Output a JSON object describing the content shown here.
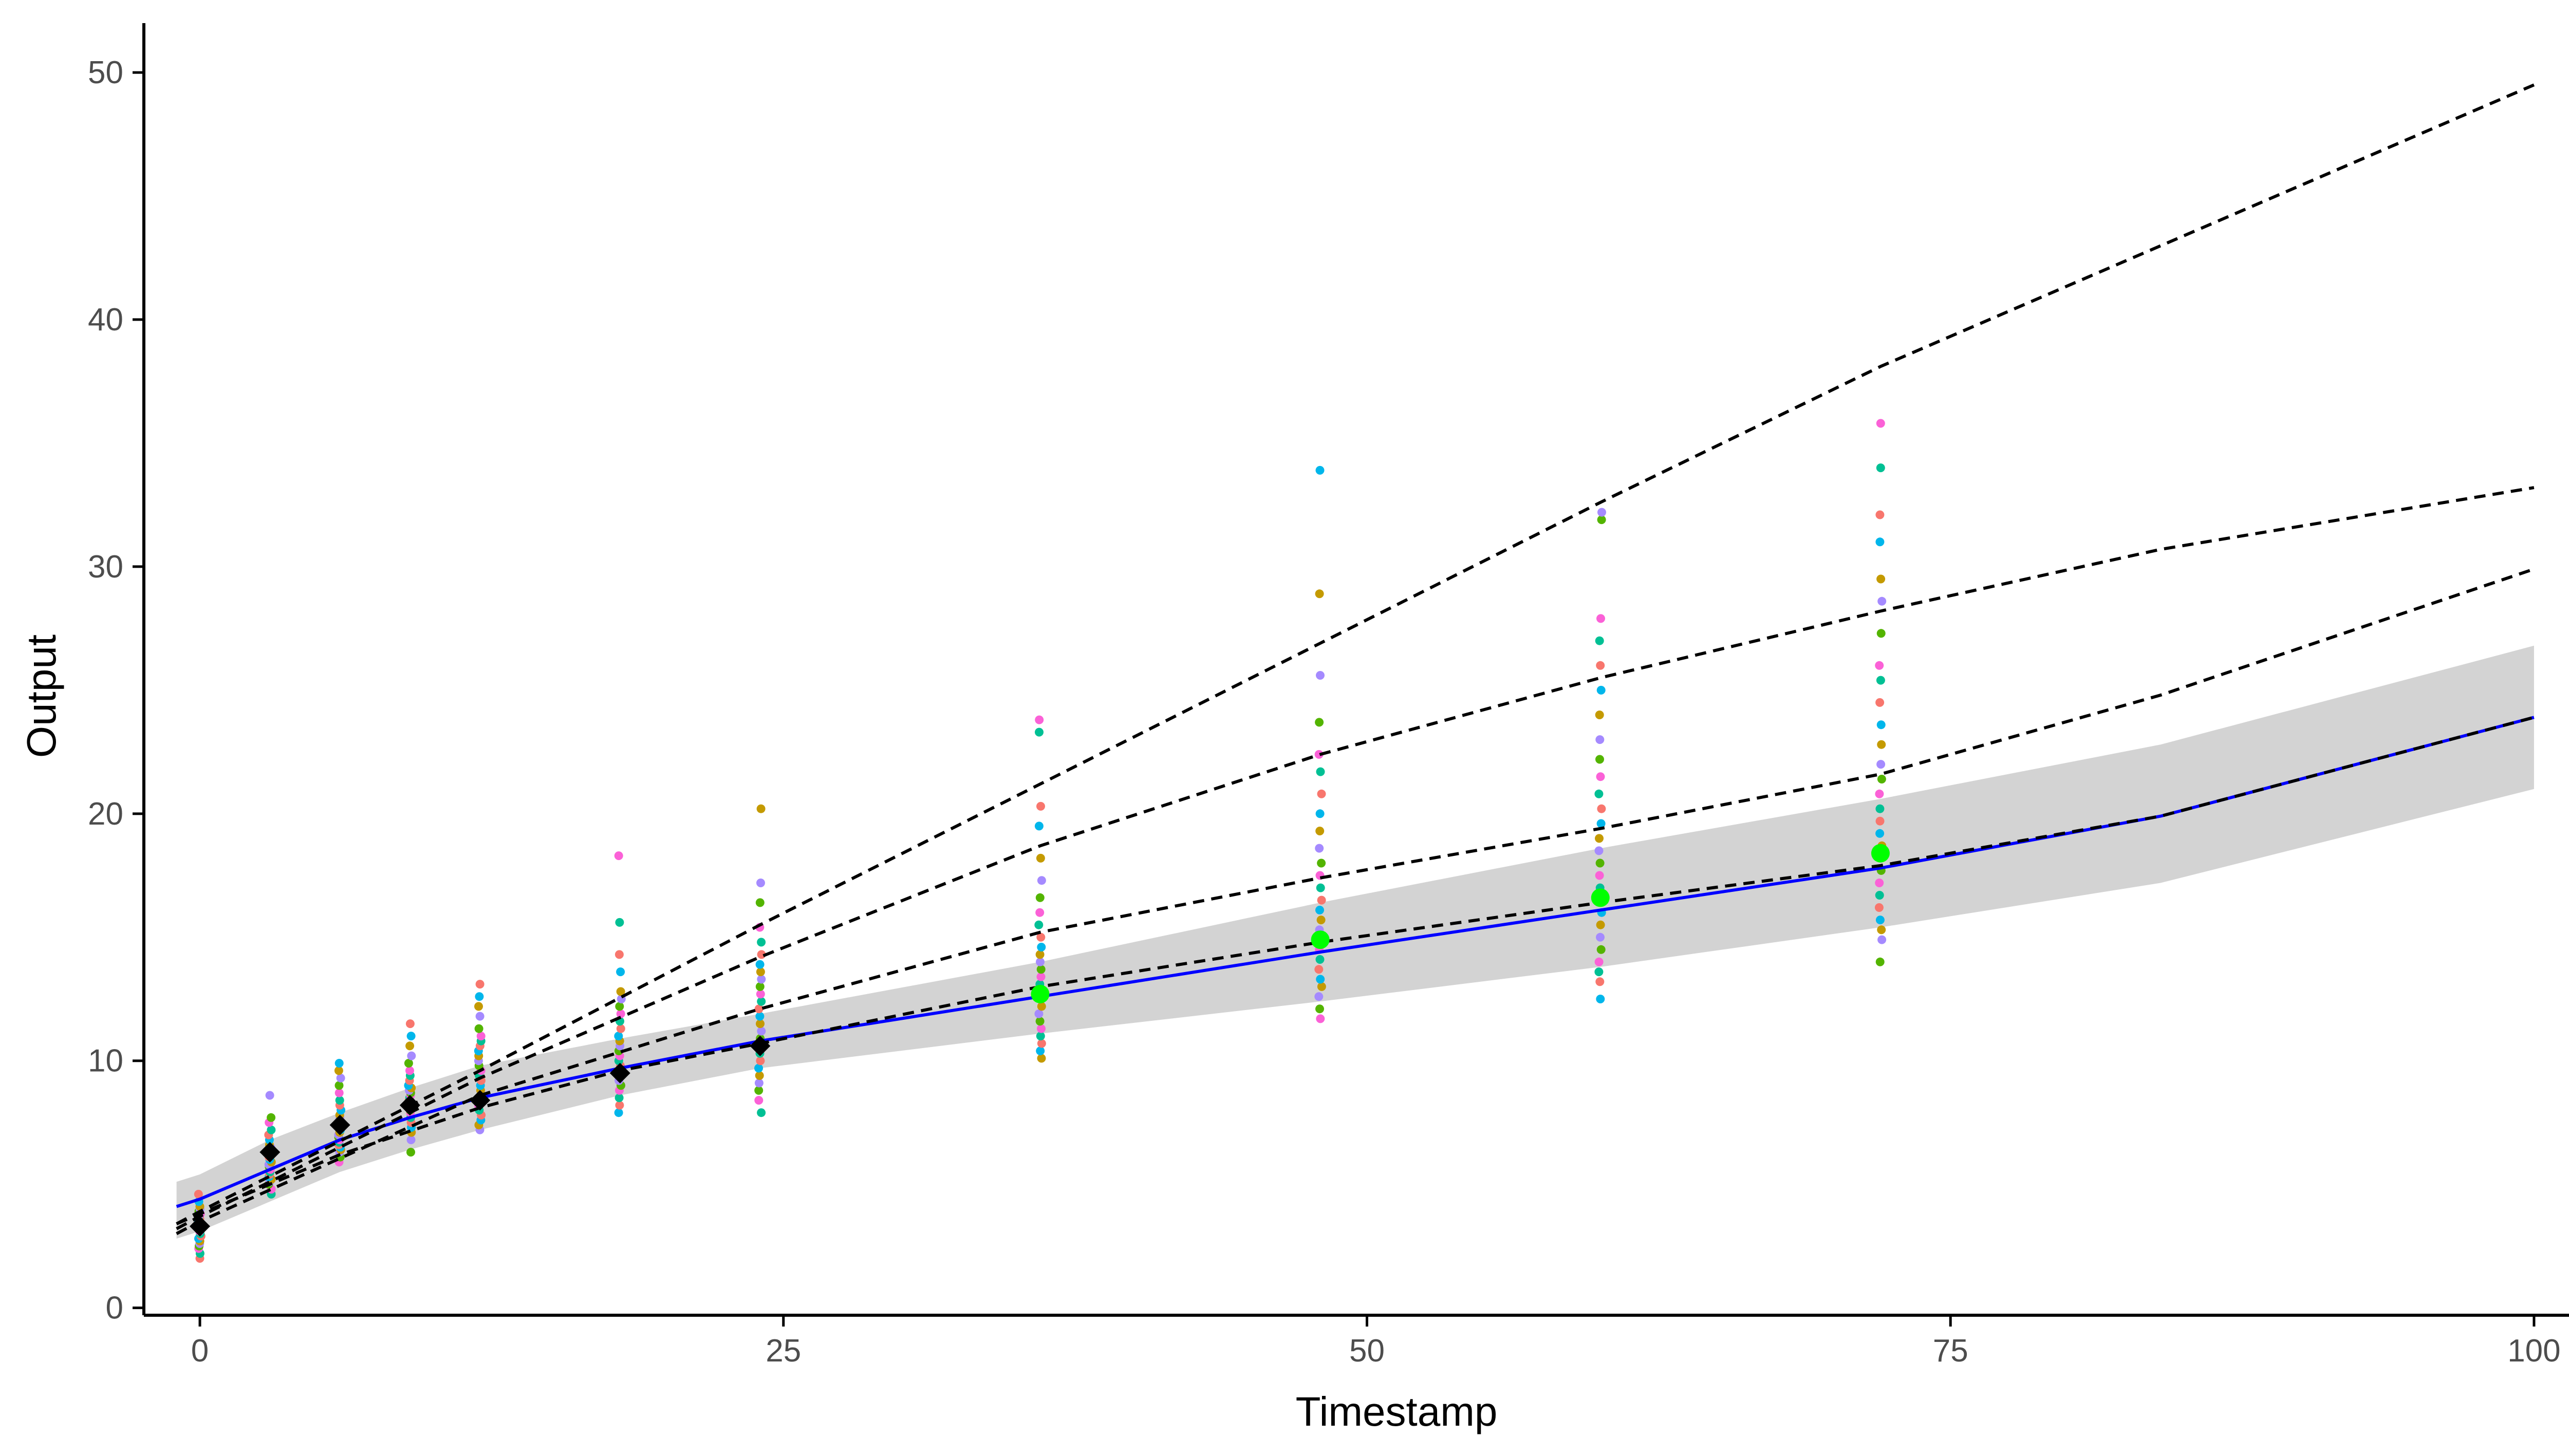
{
  "chart_data": {
    "type": "scatter",
    "title": "",
    "xlabel": "Timestamp",
    "ylabel": "Output",
    "xlim": [
      -2.4,
      104.8
    ],
    "ylim": [
      -0.3,
      52
    ],
    "x_ticks": [
      0,
      25,
      50,
      75,
      100
    ],
    "y_ticks": [
      0,
      10,
      20,
      30,
      40,
      50
    ],
    "grid": false,
    "legend": "none",
    "colors": {
      "fit_line": "#0000ff",
      "ribbon": "#d3d3d3",
      "dashed_lines": "#000000",
      "observed_means": "#000000",
      "predicted_means": "#00ff00",
      "axis": "#000000",
      "tick_labels": "#4d4d4d",
      "points_palette": [
        "#f8766d",
        "#c49a00",
        "#53b400",
        "#00c094",
        "#00b6eb",
        "#a58aff",
        "#fb61d7"
      ]
    },
    "series": [
      {
        "kind": "points",
        "note_colors_cycle": true,
        "groups": [
          {
            "x": 0,
            "values": [
              2.0,
              2.2,
              2.4,
              2.5,
              2.6,
              2.7,
              2.8,
              2.9,
              3.0,
              3.1,
              3.2,
              3.3,
              3.4,
              3.5,
              3.6,
              3.7,
              3.8,
              3.9,
              4.0,
              4.1,
              4.3,
              4.6
            ]
          },
          {
            "x": 3,
            "values": [
              4.6,
              4.8,
              5.0,
              5.1,
              5.2,
              5.3,
              5.4,
              5.5,
              5.6,
              5.7,
              5.8,
              5.9,
              6.0,
              6.1,
              6.2,
              6.3,
              6.4,
              6.5,
              6.6,
              6.8,
              7.0,
              7.2,
              7.5,
              7.7,
              8.6
            ]
          },
          {
            "x": 6,
            "values": [
              5.9,
              6.1,
              6.3,
              6.4,
              6.5,
              6.6,
              6.7,
              6.8,
              6.9,
              7.0,
              7.1,
              7.2,
              7.3,
              7.4,
              7.5,
              7.6,
              7.7,
              7.8,
              8.0,
              8.2,
              8.4,
              8.7,
              9.0,
              9.3,
              9.6,
              9.9
            ]
          },
          {
            "x": 9,
            "values": [
              6.3,
              6.8,
              7.1,
              7.3,
              7.5,
              7.7,
              7.9,
              8.0,
              8.1,
              8.2,
              8.3,
              8.4,
              8.5,
              8.6,
              8.7,
              8.8,
              8.9,
              9.0,
              9.2,
              9.4,
              9.6,
              9.9,
              10.2,
              10.6,
              11.0,
              11.5
            ]
          },
          {
            "x": 12,
            "values": [
              7.2,
              7.4,
              7.6,
              7.8,
              8.0,
              8.2,
              8.4,
              8.6,
              8.8,
              9.0,
              9.2,
              9.4,
              9.6,
              9.8,
              10.0,
              10.2,
              10.4,
              10.6,
              10.8,
              11.0,
              11.3,
              11.8,
              12.2,
              12.6,
              13.1
            ]
          },
          {
            "x": 18,
            "values": [
              7.9,
              8.2,
              8.5,
              8.8,
              9.0,
              9.2,
              9.4,
              9.6,
              9.8,
              10.0,
              10.2,
              10.4,
              10.6,
              10.8,
              11.0,
              11.3,
              11.6,
              11.9,
              12.2,
              12.5,
              12.8,
              13.6,
              14.3,
              15.6,
              18.3
            ]
          },
          {
            "x": 24,
            "values": [
              7.9,
              8.4,
              8.8,
              9.1,
              9.4,
              9.7,
              10.0,
              10.3,
              10.6,
              10.9,
              11.2,
              11.5,
              11.8,
              12.1,
              12.4,
              12.7,
              13.0,
              13.3,
              13.6,
              13.9,
              14.3,
              14.8,
              15.4,
              16.4,
              17.2,
              20.2
            ]
          },
          {
            "x": 36,
            "values": [
              10.1,
              10.4,
              10.7,
              11.0,
              11.3,
              11.6,
              11.9,
              12.2,
              12.5,
              12.8,
              13.1,
              13.4,
              13.7,
              14.0,
              14.3,
              14.6,
              15.0,
              15.5,
              16.0,
              16.6,
              17.3,
              18.2,
              19.5,
              20.3,
              23.3,
              23.8
            ]
          },
          {
            "x": 48,
            "values": [
              11.7,
              12.1,
              12.6,
              13.0,
              13.3,
              13.7,
              14.1,
              14.5,
              14.9,
              15.3,
              15.7,
              16.1,
              16.5,
              17.0,
              17.5,
              18.0,
              18.6,
              19.3,
              20.0,
              20.8,
              21.7,
              22.4,
              23.7,
              25.6,
              28.9,
              33.9
            ]
          },
          {
            "x": 60,
            "values": [
              12.5,
              13.2,
              13.6,
              14.0,
              14.5,
              15.0,
              15.5,
              16.0,
              16.5,
              17.0,
              17.5,
              18.0,
              18.5,
              19.0,
              19.6,
              20.2,
              20.8,
              21.5,
              22.2,
              23.0,
              24.0,
              25.0,
              26.0,
              27.0,
              27.9,
              31.9,
              32.2
            ]
          },
          {
            "x": 72,
            "values": [
              14.0,
              14.9,
              15.3,
              15.7,
              16.2,
              16.7,
              17.2,
              17.7,
              18.2,
              18.7,
              19.2,
              19.7,
              20.2,
              20.8,
              21.4,
              22.0,
              22.8,
              23.6,
              24.5,
              25.4,
              26.0,
              27.3,
              28.6,
              29.5,
              31.0,
              32.1,
              34.0,
              35.8
            ]
          }
        ]
      },
      {
        "kind": "ribbon",
        "x": [
          -1,
          0,
          3,
          6,
          9,
          12,
          18,
          24,
          36,
          48,
          60,
          72,
          84,
          100
        ],
        "lower": [
          2.8,
          3.1,
          4.3,
          5.5,
          6.4,
          7.2,
          8.6,
          9.7,
          11.1,
          12.4,
          13.8,
          15.4,
          17.2,
          21.0
        ],
        "upper": [
          5.1,
          5.4,
          6.8,
          7.9,
          8.9,
          9.8,
          10.9,
          11.9,
          14.0,
          16.4,
          18.6,
          20.6,
          22.8,
          26.8
        ]
      },
      {
        "kind": "line",
        "style": "solid",
        "x": [
          -1,
          0,
          3,
          6,
          9,
          12,
          18,
          24,
          36,
          48,
          60,
          72,
          84,
          100
        ],
        "values": [
          4.1,
          4.4,
          5.6,
          6.8,
          7.7,
          8.5,
          9.7,
          10.8,
          12.6,
          14.4,
          16.1,
          17.8,
          19.9,
          23.9
        ]
      },
      {
        "kind": "line",
        "style": "dashed",
        "x": [
          -1,
          0,
          12,
          24,
          36,
          48,
          60,
          72,
          100
        ],
        "values": [
          3.4,
          3.9,
          9.6,
          15.5,
          21.2,
          26.9,
          32.6,
          38.1,
          49.5
        ]
      },
      {
        "kind": "line",
        "style": "dashed",
        "x": [
          -1,
          0,
          12,
          24,
          36,
          48,
          60,
          72,
          84,
          100
        ],
        "values": [
          3.2,
          3.7,
          9.3,
          14.2,
          18.7,
          22.4,
          25.5,
          28.2,
          30.7,
          33.2
        ]
      },
      {
        "kind": "line",
        "style": "dashed",
        "x": [
          -1,
          0,
          12,
          24,
          36,
          48,
          60,
          72,
          84,
          100
        ],
        "values": [
          3.0,
          3.5,
          8.6,
          12.1,
          15.2,
          17.4,
          19.4,
          21.6,
          24.8,
          29.9
        ]
      },
      {
        "kind": "line",
        "style": "dashed",
        "x": [
          -1,
          0,
          6,
          12,
          18,
          24,
          36,
          48,
          60,
          72,
          84,
          100
        ],
        "values": [
          3.4,
          3.8,
          6.2,
          8.1,
          9.6,
          10.7,
          13.0,
          14.8,
          16.4,
          17.9,
          19.9,
          23.9
        ]
      },
      {
        "kind": "markers",
        "shape": "diamond",
        "x": [
          0,
          3,
          6,
          9,
          12,
          18,
          24
        ],
        "values": [
          3.3,
          6.3,
          7.4,
          8.2,
          8.4,
          9.5,
          10.6
        ]
      },
      {
        "kind": "markers",
        "shape": "circle",
        "x": [
          36,
          48,
          60,
          72
        ],
        "values": [
          12.7,
          14.9,
          16.6,
          18.4
        ]
      }
    ]
  }
}
